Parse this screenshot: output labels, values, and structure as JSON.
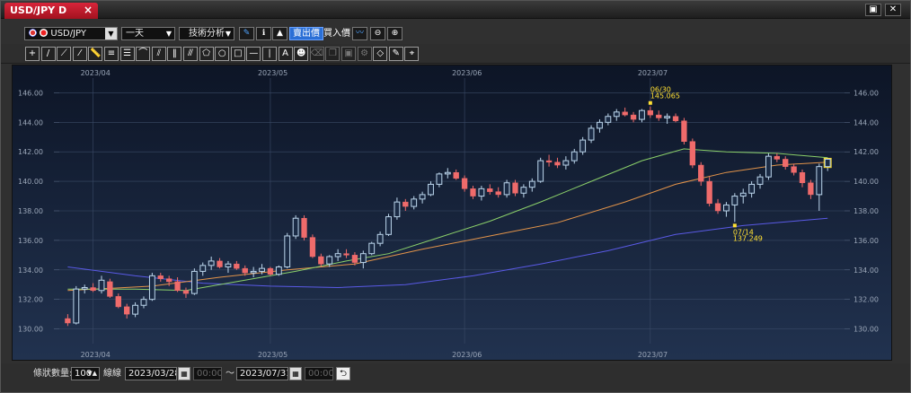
{
  "window": {
    "tab_title": "USD/JPY D",
    "tab_close": "×",
    "restore_label": "▣",
    "close_label": "✕"
  },
  "toolbar": {
    "symbol": "USD/JPY",
    "period": "一天",
    "analysis": "技術分析",
    "price_bid": "賣出價",
    "price_ask": "買入價",
    "icon_names": [
      "pen-icon",
      "info-icon",
      "mountain-chart-icon",
      "indicator-icon",
      "zoom-out-icon",
      "zoom-in-icon"
    ]
  },
  "drawing_tools": [
    {
      "name": "crosshair-tool",
      "glyph": "+"
    },
    {
      "name": "line-tool",
      "glyph": "/"
    },
    {
      "name": "ray-tool",
      "glyph": "⟋"
    },
    {
      "name": "extended-line-tool",
      "glyph": "⁄"
    },
    {
      "name": "ruler-tool",
      "glyph": "📏"
    },
    {
      "name": "parallel-lines-tool",
      "glyph": "≡"
    },
    {
      "name": "fibonacci-tool",
      "glyph": "☰"
    },
    {
      "name": "fib-fan-tool",
      "glyph": "⌒"
    },
    {
      "name": "pitchfork-tool",
      "glyph": "⫽"
    },
    {
      "name": "vertical-lines-tool",
      "glyph": "‖"
    },
    {
      "name": "channel-tool",
      "glyph": "⫻"
    },
    {
      "name": "polygon-tool",
      "glyph": "⬠"
    },
    {
      "name": "circle-tool",
      "glyph": "○"
    },
    {
      "name": "rectangle-tool",
      "glyph": "□"
    },
    {
      "name": "horizontal-line-tool",
      "glyph": "—"
    },
    {
      "name": "vertical-line-tool",
      "glyph": "|"
    },
    {
      "name": "text-tool",
      "glyph": "A"
    },
    {
      "name": "icon-tool",
      "glyph": "☻"
    },
    {
      "name": "delete-tool",
      "glyph": "⌫"
    },
    {
      "name": "copy-tool",
      "glyph": "❐"
    },
    {
      "name": "paste-tool",
      "glyph": "▣"
    },
    {
      "name": "settings-tool",
      "glyph": "⚙"
    },
    {
      "name": "eraser-tool",
      "glyph": "◇"
    },
    {
      "name": "edit-tool",
      "glyph": "✎"
    },
    {
      "name": "magnet-tool",
      "glyph": "⌖"
    }
  ],
  "bottom": {
    "candle_count_label": "條狀數量:",
    "candle_count": "100",
    "line_label": "線線",
    "start_date": "2023/03/28",
    "start_time": "00:00",
    "tilde": "～",
    "end_date": "2023/07/31",
    "end_time": "00:00",
    "refresh_label": "⮌"
  },
  "chart_data": {
    "type": "candlestick",
    "symbol": "USD/JPY",
    "timeframe": "D",
    "ylim": [
      129.0,
      147.0
    ],
    "yticks": [
      130.0,
      132.0,
      134.0,
      136.0,
      138.0,
      140.0,
      142.0,
      144.0,
      146.0
    ],
    "x_date_labels": [
      {
        "label": "2023/04",
        "index": 3
      },
      {
        "label": "2023/05",
        "index": 24
      },
      {
        "label": "2023/06",
        "index": 47
      },
      {
        "label": "2023/07",
        "index": 69
      }
    ],
    "annotations": [
      {
        "date": "06/30",
        "value": "145.065",
        "index": 69,
        "kind": "high"
      },
      {
        "date": "07/14",
        "value": "137.249",
        "index": 79,
        "kind": "low"
      }
    ],
    "colors": {
      "up": "#bcd6ec",
      "down": "#ef6b6b",
      "ma_fast": "#8bd06a",
      "ma_mid": "#e3944a",
      "ma_slow": "#5a5ae6",
      "annotation": "#ffe033"
    },
    "candles": [
      [
        130.7,
        131.0,
        130.2,
        130.4
      ],
      [
        130.4,
        132.9,
        130.3,
        132.7
      ],
      [
        132.7,
        133.0,
        132.4,
        132.8
      ],
      [
        132.8,
        133.1,
        132.5,
        132.6
      ],
      [
        132.6,
        133.6,
        132.4,
        133.3
      ],
      [
        133.2,
        133.4,
        132.1,
        132.2
      ],
      [
        132.2,
        132.4,
        131.4,
        131.5
      ],
      [
        131.5,
        131.7,
        130.7,
        131.0
      ],
      [
        131.0,
        131.8,
        130.8,
        131.6
      ],
      [
        131.6,
        132.2,
        131.4,
        132.0
      ],
      [
        132.0,
        133.8,
        131.9,
        133.6
      ],
      [
        133.6,
        133.8,
        133.2,
        133.4
      ],
      [
        133.4,
        133.6,
        132.9,
        133.2
      ],
      [
        133.2,
        133.5,
        132.5,
        132.6
      ],
      [
        132.6,
        132.8,
        132.1,
        132.4
      ],
      [
        132.4,
        134.1,
        132.3,
        133.9
      ],
      [
        133.9,
        134.5,
        133.6,
        134.3
      ],
      [
        134.3,
        134.9,
        134.0,
        134.6
      ],
      [
        134.6,
        134.8,
        134.1,
        134.2
      ],
      [
        134.2,
        134.6,
        133.8,
        134.4
      ],
      [
        134.4,
        134.6,
        134.0,
        134.1
      ],
      [
        134.1,
        134.3,
        133.6,
        133.8
      ],
      [
        133.8,
        134.2,
        133.5,
        133.9
      ],
      [
        133.9,
        134.4,
        133.7,
        134.1
      ],
      [
        134.1,
        134.2,
        133.6,
        133.7
      ],
      [
        133.7,
        134.3,
        133.6,
        134.2
      ],
      [
        134.2,
        136.5,
        134.1,
        136.3
      ],
      [
        136.3,
        137.7,
        136.1,
        137.5
      ],
      [
        137.5,
        137.7,
        136.0,
        136.2
      ],
      [
        136.2,
        136.4,
        134.8,
        134.9
      ],
      [
        134.9,
        135.1,
        134.2,
        134.4
      ],
      [
        134.4,
        135.0,
        134.2,
        134.9
      ],
      [
        134.9,
        135.4,
        134.6,
        135.1
      ],
      [
        135.1,
        135.4,
        134.8,
        135.0
      ],
      [
        135.0,
        135.2,
        134.3,
        134.5
      ],
      [
        134.5,
        135.3,
        134.1,
        135.1
      ],
      [
        135.1,
        135.9,
        135.0,
        135.8
      ],
      [
        135.8,
        136.6,
        135.6,
        136.4
      ],
      [
        136.4,
        137.8,
        136.3,
        137.6
      ],
      [
        137.6,
        138.9,
        137.4,
        138.6
      ],
      [
        138.6,
        138.8,
        138.0,
        138.3
      ],
      [
        138.3,
        139.0,
        138.1,
        138.8
      ],
      [
        138.8,
        139.3,
        138.5,
        139.1
      ],
      [
        139.1,
        140.0,
        139.0,
        139.8
      ],
      [
        139.8,
        140.6,
        139.6,
        140.5
      ],
      [
        140.5,
        140.9,
        140.2,
        140.6
      ],
      [
        140.6,
        140.8,
        140.1,
        140.2
      ],
      [
        140.2,
        140.4,
        139.3,
        139.5
      ],
      [
        139.5,
        139.7,
        138.8,
        139.0
      ],
      [
        139.0,
        139.7,
        138.7,
        139.5
      ],
      [
        139.5,
        139.8,
        139.1,
        139.3
      ],
      [
        139.3,
        139.6,
        138.9,
        139.1
      ],
      [
        139.1,
        140.1,
        138.9,
        139.9
      ],
      [
        139.9,
        140.1,
        139.0,
        139.2
      ],
      [
        139.2,
        139.8,
        138.9,
        139.6
      ],
      [
        139.6,
        140.2,
        139.3,
        140.0
      ],
      [
        140.0,
        141.6,
        139.9,
        141.4
      ],
      [
        141.4,
        141.8,
        141.0,
        141.3
      ],
      [
        141.3,
        141.6,
        140.9,
        141.1
      ],
      [
        141.1,
        141.7,
        140.8,
        141.4
      ],
      [
        141.4,
        142.2,
        141.2,
        142.0
      ],
      [
        142.0,
        143.0,
        141.8,
        142.8
      ],
      [
        142.8,
        143.8,
        142.6,
        143.6
      ],
      [
        143.6,
        144.2,
        143.3,
        144.0
      ],
      [
        144.0,
        144.6,
        143.8,
        144.4
      ],
      [
        144.4,
        144.9,
        144.1,
        144.7
      ],
      [
        144.7,
        145.0,
        144.4,
        144.5
      ],
      [
        144.5,
        144.7,
        144.0,
        144.2
      ],
      [
        144.2,
        144.9,
        144.0,
        144.8
      ],
      [
        144.8,
        145.07,
        144.3,
        144.5
      ],
      [
        144.5,
        144.8,
        144.1,
        144.3
      ],
      [
        144.3,
        144.6,
        143.9,
        144.4
      ],
      [
        144.4,
        144.6,
        144.0,
        144.1
      ],
      [
        144.1,
        144.3,
        142.5,
        142.7
      ],
      [
        142.7,
        142.9,
        140.9,
        141.1
      ],
      [
        141.1,
        141.3,
        139.7,
        140.0
      ],
      [
        140.0,
        140.3,
        138.3,
        138.5
      ],
      [
        138.5,
        138.8,
        137.8,
        138.0
      ],
      [
        138.0,
        138.6,
        137.6,
        138.4
      ],
      [
        138.4,
        139.2,
        137.249,
        139.0
      ],
      [
        139.0,
        139.5,
        138.5,
        139.2
      ],
      [
        139.2,
        140.0,
        138.9,
        139.8
      ],
      [
        139.8,
        140.5,
        139.5,
        140.3
      ],
      [
        140.3,
        141.9,
        140.1,
        141.7
      ],
      [
        141.7,
        141.9,
        141.3,
        141.5
      ],
      [
        141.5,
        141.7,
        140.8,
        141.0
      ],
      [
        141.0,
        141.2,
        140.4,
        140.6
      ],
      [
        140.6,
        140.8,
        139.6,
        139.9
      ],
      [
        139.9,
        140.1,
        138.8,
        139.1
      ],
      [
        139.1,
        141.2,
        138.0,
        141.0
      ],
      [
        141.0,
        141.6,
        140.7,
        141.5
      ]
    ],
    "ma_fast": [
      [
        0,
        132.7
      ],
      [
        8,
        132.7
      ],
      [
        14,
        132.6
      ],
      [
        20,
        133.2
      ],
      [
        27,
        133.9
      ],
      [
        33,
        134.6
      ],
      [
        38,
        135.1
      ],
      [
        44,
        136.2
      ],
      [
        50,
        137.3
      ],
      [
        56,
        138.6
      ],
      [
        62,
        140.0
      ],
      [
        68,
        141.4
      ],
      [
        73,
        142.2
      ],
      [
        78,
        142.0
      ],
      [
        84,
        141.9
      ],
      [
        90,
        141.6
      ]
    ],
    "ma_mid": [
      [
        0,
        132.6
      ],
      [
        10,
        132.9
      ],
      [
        18,
        133.5
      ],
      [
        26,
        134.0
      ],
      [
        34,
        134.4
      ],
      [
        42,
        135.4
      ],
      [
        50,
        136.3
      ],
      [
        58,
        137.2
      ],
      [
        66,
        138.6
      ],
      [
        72,
        139.8
      ],
      [
        78,
        140.6
      ],
      [
        84,
        141.1
      ],
      [
        90,
        141.3
      ]
    ],
    "ma_slow": [
      [
        0,
        134.2
      ],
      [
        8,
        133.6
      ],
      [
        16,
        133.1
      ],
      [
        24,
        132.9
      ],
      [
        32,
        132.8
      ],
      [
        40,
        133.0
      ],
      [
        48,
        133.6
      ],
      [
        56,
        134.4
      ],
      [
        64,
        135.3
      ],
      [
        72,
        136.4
      ],
      [
        80,
        137.0
      ],
      [
        86,
        137.3
      ],
      [
        90,
        137.5
      ]
    ]
  }
}
